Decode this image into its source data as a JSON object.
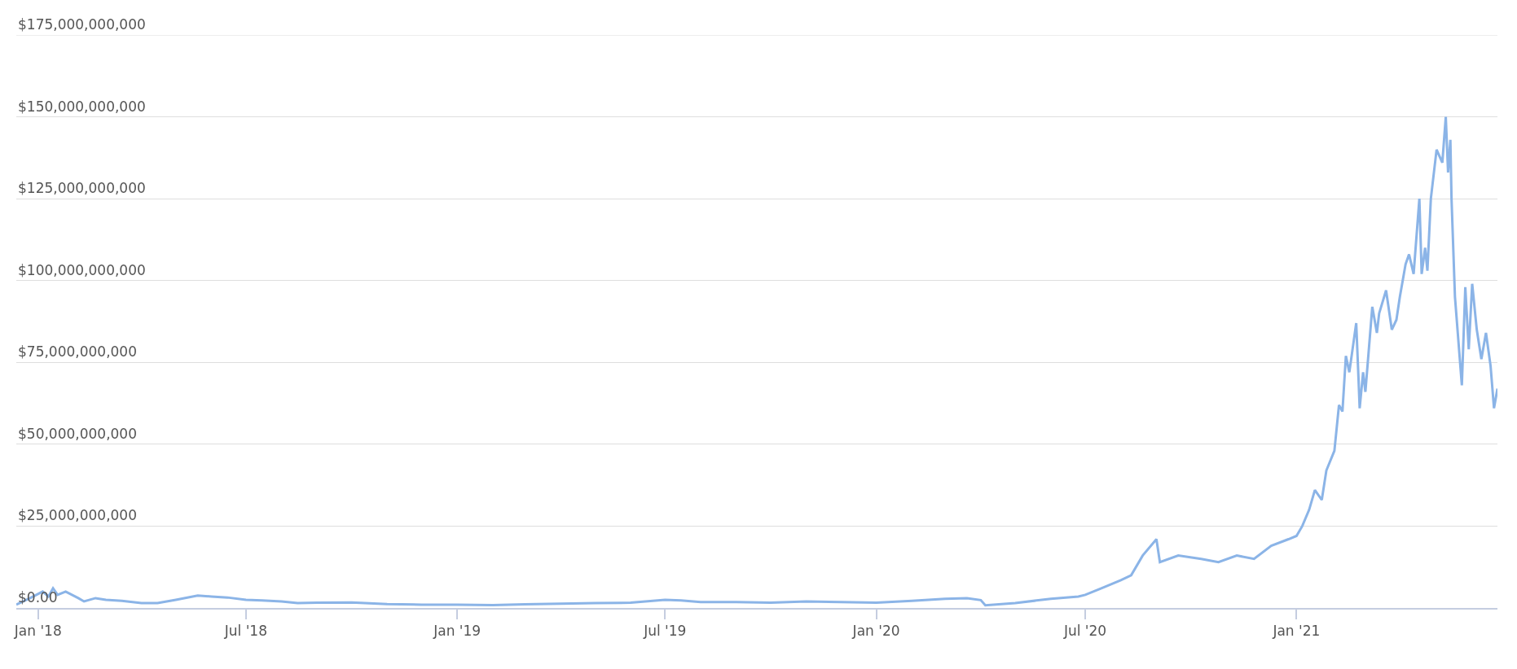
{
  "chart_data": {
    "type": "line",
    "xlim": [
      "2017-12-13",
      "2021-06-25"
    ],
    "xticks": [
      {
        "value": "2018-01-01",
        "label": "Jan '18"
      },
      {
        "value": "2018-07-01",
        "label": "Jul '18"
      },
      {
        "value": "2019-01-01",
        "label": "Jan '19"
      },
      {
        "value": "2019-07-01",
        "label": "Jul '19"
      },
      {
        "value": "2020-01-01",
        "label": "Jan '20"
      },
      {
        "value": "2020-07-01",
        "label": "Jul '20"
      },
      {
        "value": "2021-01-01",
        "label": "Jan '21"
      }
    ],
    "ylim": [
      0,
      175000000000
    ],
    "yticks": [
      {
        "value": 0,
        "label": "$0.00"
      },
      {
        "value": 25000000000,
        "label": "$25,000,000,000"
      },
      {
        "value": 50000000000,
        "label": "$50,000,000,000"
      },
      {
        "value": 75000000000,
        "label": "$75,000,000,000"
      },
      {
        "value": 100000000000,
        "label": "$100,000,000,000"
      },
      {
        "value": 125000000000,
        "label": "$125,000,000,000"
      },
      {
        "value": 150000000000,
        "label": "$150,000,000,000"
      },
      {
        "value": 175000000000,
        "label": "$175,000,000,000"
      }
    ],
    "grid": "y",
    "marker": "none",
    "line_style": "solid",
    "x": [
      "2017-12-13",
      "2017-12-25",
      "2018-01-05",
      "2018-01-10",
      "2018-01-14",
      "2018-01-18",
      "2018-01-25",
      "2018-02-05",
      "2018-02-10",
      "2018-02-20",
      "2018-03-01",
      "2018-03-15",
      "2018-04-01",
      "2018-04-15",
      "2018-05-01",
      "2018-05-20",
      "2018-06-01",
      "2018-06-15",
      "2018-07-01",
      "2018-07-15",
      "2018-08-01",
      "2018-08-15",
      "2018-09-01",
      "2018-10-01",
      "2018-11-01",
      "2018-12-01",
      "2019-01-01",
      "2019-02-01",
      "2019-03-01",
      "2019-04-01",
      "2019-05-01",
      "2019-06-01",
      "2019-07-01",
      "2019-07-15",
      "2019-08-01",
      "2019-09-01",
      "2019-10-01",
      "2019-11-01",
      "2019-12-01",
      "2020-01-01",
      "2020-02-01",
      "2020-03-01",
      "2020-03-20",
      "2020-04-01",
      "2020-04-05",
      "2020-05-01",
      "2020-06-01",
      "2020-06-25",
      "2020-07-01",
      "2020-07-15",
      "2020-08-01",
      "2020-08-10",
      "2020-08-20",
      "2020-09-01",
      "2020-09-04",
      "2020-09-20",
      "2020-10-10",
      "2020-10-25",
      "2020-11-10",
      "2020-11-25",
      "2020-12-10",
      "2020-12-25",
      "2021-01-01",
      "2021-01-06",
      "2021-01-12",
      "2021-01-17",
      "2021-01-23",
      "2021-01-27",
      "2021-02-03",
      "2021-02-07",
      "2021-02-10",
      "2021-02-13",
      "2021-02-16",
      "2021-02-22",
      "2021-02-24",
      "2021-02-25",
      "2021-02-28",
      "2021-03-02",
      "2021-03-08",
      "2021-03-12",
      "2021-03-14",
      "2021-03-20",
      "2021-03-25",
      "2021-03-29",
      "2021-04-01",
      "2021-04-06",
      "2021-04-09",
      "2021-04-13",
      "2021-04-18",
      "2021-04-20",
      "2021-04-23",
      "2021-04-25",
      "2021-04-28",
      "2021-05-03",
      "2021-05-08",
      "2021-05-11",
      "2021-05-13",
      "2021-05-15",
      "2021-05-16",
      "2021-05-19",
      "2021-05-25",
      "2021-05-28",
      "2021-05-31",
      "2021-06-03",
      "2021-06-07",
      "2021-06-11",
      "2021-06-15",
      "2021-06-19",
      "2021-06-22",
      "2021-06-25"
    ],
    "series": [
      {
        "color": "#8bb4e7",
        "values": [
          1000000000.0,
          3000000000.0,
          5000000000.0,
          3500000000.0,
          6000000000.0,
          4000000000.0,
          5000000000.0,
          3000000000.0,
          2000000000.0,
          3000000000.0,
          2500000000.0,
          2200000000.0,
          1500000000.0,
          1500000000.0,
          2500000000.0,
          3800000000.0,
          3500000000.0,
          3200000000.0,
          2500000000.0,
          2300000000.0,
          2000000000.0,
          1500000000.0,
          1600000000.0,
          1700000000.0,
          1200000000.0,
          1000000000.0,
          1000000000.0,
          900000000.0,
          1100000000.0,
          1300000000.0,
          1500000000.0,
          1600000000.0,
          2500000000.0,
          2300000000.0,
          1800000000.0,
          1800000000.0,
          1600000000.0,
          2000000000.0,
          1800000000.0,
          1600000000.0,
          2200000000.0,
          2800000000.0,
          3000000000.0,
          2400000000.0,
          800000000.0,
          1500000000.0,
          2800000000.0,
          3500000000.0,
          4000000000.0,
          6000000000.0,
          8500000000.0,
          10000000000.0,
          16000000000.0,
          21000000000.0,
          14000000000.0,
          16000000000.0,
          15000000000.0,
          14000000000.0,
          16000000000.0,
          15000000000.0,
          19000000000.0,
          21000000000.0,
          22000000000.0,
          25000000000.0,
          30000000000.0,
          36000000000.0,
          33000000000.0,
          42000000000.0,
          48000000000.0,
          62000000000.0,
          60000000000.0,
          77000000000.0,
          72000000000.0,
          87000000000.0,
          70000000000.0,
          61000000000.0,
          72000000000.0,
          66000000000.0,
          92000000000.0,
          84000000000.0,
          90000000000.0,
          97000000000.0,
          85000000000.0,
          88000000000.0,
          95000000000.0,
          105000000000.0,
          108000000000.0,
          102000000000.0,
          125000000000.0,
          102000000000.0,
          110000000000.0,
          103000000000.0,
          125000000000.0,
          140000000000.0,
          136000000000.0,
          150000000000.0,
          133000000000.0,
          143000000000.0,
          125000000000.0,
          95000000000.0,
          68000000000.0,
          98000000000.0,
          79000000000.0,
          99000000000.0,
          85000000000.0,
          76000000000.0,
          84000000000.0,
          74000000000.0,
          61000000000.0,
          67000000000.0
        ]
      }
    ]
  }
}
